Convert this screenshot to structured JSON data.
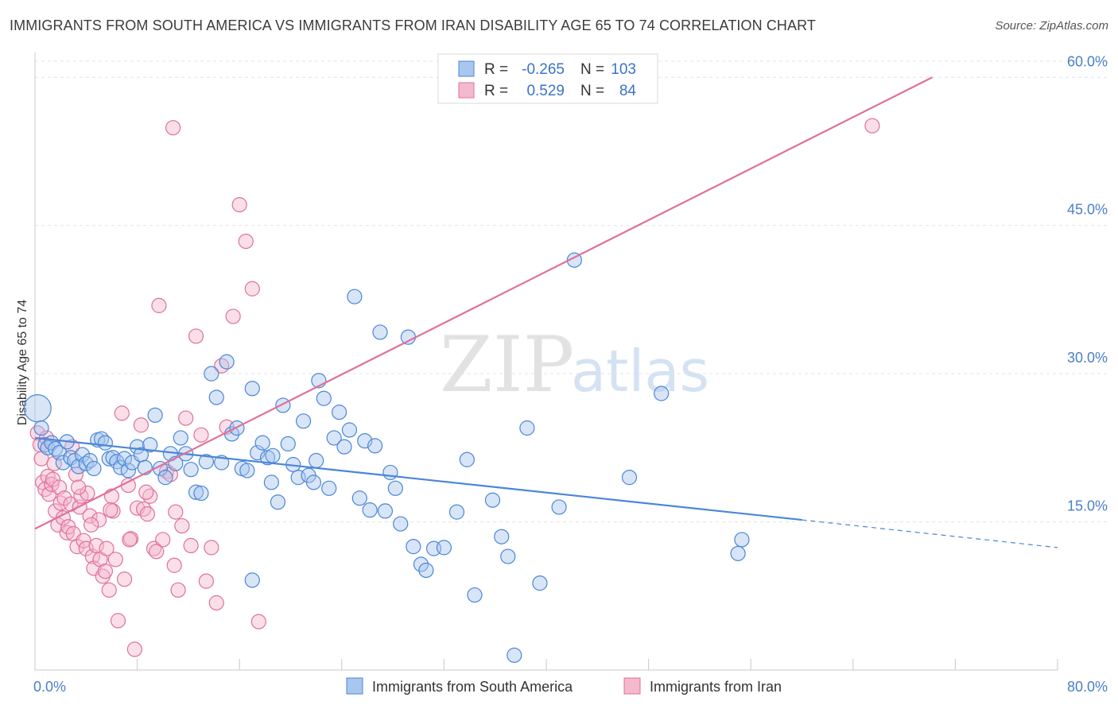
{
  "title": "IMMIGRANTS FROM SOUTH AMERICA VS IMMIGRANTS FROM IRAN DISABILITY AGE 65 TO 74 CORRELATION CHART",
  "source": "Source: ZipAtlas.com",
  "watermark": {
    "zip": "ZIP",
    "atlas": "atlas"
  },
  "colors": {
    "blue": "#4a86d8",
    "blue_fill": "#a9c6ee",
    "pink": "#e0709a",
    "pink_fill": "#f3b9cc",
    "tick": "#4a7fc9"
  },
  "legend": {
    "rows": [
      {
        "r_label": "R =",
        "r_value": "-0.265",
        "n_label": "N =",
        "n_value": "103"
      },
      {
        "r_label": "R =",
        "r_value": "0.529",
        "n_label": "N =",
        "n_value": "84"
      }
    ]
  },
  "chart_data": {
    "type": "scatter",
    "xlabel": "",
    "ylabel": "Disability Age 65 to 74",
    "xlim": [
      0,
      80
    ],
    "ylim": [
      0,
      63
    ],
    "x_tick_labels": [
      "0.0%",
      "80.0%"
    ],
    "y_ticks": [
      {
        "value": 15,
        "label": "15.0%"
      },
      {
        "value": 30,
        "label": "30.0%"
      },
      {
        "value": 45,
        "label": "45.0%"
      },
      {
        "value": 60,
        "label": "60.0%"
      }
    ],
    "grid": true,
    "series": [
      {
        "name": "Immigrants from South America",
        "color": "#4a86d8",
        "r": -0.265,
        "n": 103,
        "trend": {
          "x0": 0,
          "y0": 23.5,
          "x1": 60,
          "y1": 15.2,
          "dashed_to_x": 80,
          "dashed_to_y": 12.4
        },
        "points": [
          [
            0.2,
            26.5
          ],
          [
            0.5,
            24.5
          ],
          [
            0.8,
            22.8
          ],
          [
            1.0,
            22.5
          ],
          [
            1.3,
            23.0
          ],
          [
            1.6,
            22.4
          ],
          [
            1.9,
            22.0
          ],
          [
            2.2,
            21.0
          ],
          [
            2.5,
            23.1
          ],
          [
            2.8,
            21.5
          ],
          [
            3.1,
            21.2
          ],
          [
            3.4,
            20.6
          ],
          [
            3.7,
            21.8
          ],
          [
            4.0,
            20.9
          ],
          [
            4.3,
            21.2
          ],
          [
            4.6,
            20.4
          ],
          [
            4.9,
            23.3
          ],
          [
            5.2,
            23.4
          ],
          [
            5.5,
            23.0
          ],
          [
            5.8,
            21.4
          ],
          [
            6.1,
            21.5
          ],
          [
            6.4,
            21.1
          ],
          [
            6.7,
            20.5
          ],
          [
            7.0,
            21.4
          ],
          [
            7.3,
            20.2
          ],
          [
            7.6,
            21.0
          ],
          [
            8.0,
            22.6
          ],
          [
            8.3,
            21.8
          ],
          [
            8.6,
            20.5
          ],
          [
            9.0,
            22.8
          ],
          [
            9.4,
            25.8
          ],
          [
            9.8,
            20.4
          ],
          [
            10.2,
            19.5
          ],
          [
            10.6,
            21.9
          ],
          [
            11.0,
            20.9
          ],
          [
            11.4,
            23.5
          ],
          [
            11.8,
            21.9
          ],
          [
            12.2,
            20.3
          ],
          [
            12.6,
            18.0
          ],
          [
            13.0,
            17.9
          ],
          [
            13.4,
            21.1
          ],
          [
            13.8,
            30.0
          ],
          [
            14.2,
            27.6
          ],
          [
            14.6,
            21.0
          ],
          [
            15.0,
            31.2
          ],
          [
            15.4,
            23.9
          ],
          [
            15.8,
            24.5
          ],
          [
            16.2,
            20.4
          ],
          [
            16.6,
            20.2
          ],
          [
            17.0,
            28.5
          ],
          [
            17.4,
            22.0
          ],
          [
            17.8,
            23.0
          ],
          [
            18.2,
            21.5
          ],
          [
            18.6,
            21.7
          ],
          [
            19.0,
            17.0
          ],
          [
            19.4,
            26.8
          ],
          [
            19.8,
            22.9
          ],
          [
            20.2,
            20.8
          ],
          [
            20.6,
            19.5
          ],
          [
            21.0,
            25.2
          ],
          [
            21.4,
            19.7
          ],
          [
            21.8,
            19.0
          ],
          [
            22.2,
            29.3
          ],
          [
            22.6,
            27.5
          ],
          [
            23.0,
            18.4
          ],
          [
            23.4,
            23.5
          ],
          [
            23.8,
            26.1
          ],
          [
            24.2,
            22.6
          ],
          [
            24.6,
            24.3
          ],
          [
            25.0,
            37.8
          ],
          [
            25.4,
            17.4
          ],
          [
            25.8,
            23.2
          ],
          [
            26.2,
            16.2
          ],
          [
            26.6,
            22.7
          ],
          [
            27.0,
            34.2
          ],
          [
            27.4,
            16.1
          ],
          [
            27.8,
            20.0
          ],
          [
            28.2,
            18.4
          ],
          [
            28.6,
            14.8
          ],
          [
            29.2,
            33.7
          ],
          [
            29.6,
            12.5
          ],
          [
            30.2,
            10.7
          ],
          [
            30.6,
            10.1
          ],
          [
            31.2,
            12.3
          ],
          [
            32.0,
            12.4
          ],
          [
            33.0,
            16.0
          ],
          [
            33.8,
            21.3
          ],
          [
            34.4,
            7.6
          ],
          [
            35.8,
            17.2
          ],
          [
            36.5,
            13.5
          ],
          [
            37.0,
            11.5
          ],
          [
            38.5,
            24.5
          ],
          [
            39.5,
            8.8
          ],
          [
            41.0,
            16.5
          ],
          [
            42.2,
            41.5
          ],
          [
            46.5,
            19.5
          ],
          [
            49.0,
            28.0
          ],
          [
            55.3,
            13.2
          ],
          [
            55.0,
            11.8
          ],
          [
            17.0,
            9.1
          ],
          [
            22.0,
            21.2
          ],
          [
            37.5,
            1.5
          ],
          [
            18.5,
            19.0
          ]
        ]
      },
      {
        "name": "Immigrants from Iran",
        "color": "#e0709a",
        "r": 0.529,
        "n": 84,
        "trend": {
          "x0": 0,
          "y0": 14.3,
          "x1": 70.2,
          "y1": 60.0
        },
        "points": [
          [
            0.2,
            24.0
          ],
          [
            0.4,
            22.8
          ],
          [
            0.5,
            21.4
          ],
          [
            0.6,
            19.0
          ],
          [
            0.8,
            18.3
          ],
          [
            1.0,
            19.6
          ],
          [
            1.1,
            17.8
          ],
          [
            1.3,
            18.8
          ],
          [
            1.4,
            19.3
          ],
          [
            1.6,
            16.1
          ],
          [
            1.8,
            14.7
          ],
          [
            1.9,
            18.5
          ],
          [
            2.0,
            16.9
          ],
          [
            2.2,
            15.4
          ],
          [
            2.3,
            17.4
          ],
          [
            2.5,
            13.9
          ],
          [
            2.6,
            14.5
          ],
          [
            2.8,
            16.8
          ],
          [
            3.0,
            13.8
          ],
          [
            3.2,
            19.8
          ],
          [
            3.3,
            12.5
          ],
          [
            3.5,
            16.5
          ],
          [
            3.6,
            17.6
          ],
          [
            3.8,
            13.1
          ],
          [
            4.0,
            12.3
          ],
          [
            4.1,
            17.9
          ],
          [
            4.3,
            15.6
          ],
          [
            4.5,
            11.5
          ],
          [
            4.6,
            10.3
          ],
          [
            4.8,
            12.6
          ],
          [
            5.0,
            15.2
          ],
          [
            5.1,
            11.2
          ],
          [
            5.3,
            9.5
          ],
          [
            5.5,
            10.0
          ],
          [
            5.6,
            12.3
          ],
          [
            5.8,
            8.1
          ],
          [
            6.0,
            17.6
          ],
          [
            6.1,
            16.1
          ],
          [
            6.3,
            11.2
          ],
          [
            6.5,
            5.0
          ],
          [
            6.8,
            26.0
          ],
          [
            7.0,
            9.2
          ],
          [
            7.3,
            18.7
          ],
          [
            7.5,
            13.3
          ],
          [
            7.8,
            2.1
          ],
          [
            8.0,
            16.4
          ],
          [
            8.3,
            24.8
          ],
          [
            8.5,
            16.3
          ],
          [
            8.8,
            15.8
          ],
          [
            9.0,
            17.6
          ],
          [
            9.3,
            12.3
          ],
          [
            9.7,
            36.9
          ],
          [
            10.0,
            13.2
          ],
          [
            10.3,
            20.1
          ],
          [
            10.6,
            19.8
          ],
          [
            10.9,
            10.6
          ],
          [
            11.2,
            8.1
          ],
          [
            11.5,
            14.6
          ],
          [
            11.8,
            25.5
          ],
          [
            12.2,
            12.6
          ],
          [
            12.6,
            33.8
          ],
          [
            13.0,
            23.8
          ],
          [
            13.4,
            9.0
          ],
          [
            13.8,
            12.4
          ],
          [
            14.2,
            6.8
          ],
          [
            14.6,
            30.8
          ],
          [
            15.0,
            24.6
          ],
          [
            15.5,
            35.8
          ],
          [
            16.0,
            47.1
          ],
          [
            16.5,
            43.4
          ],
          [
            17.0,
            38.6
          ],
          [
            17.5,
            4.9
          ],
          [
            10.8,
            54.9
          ],
          [
            65.5,
            55.1
          ],
          [
            0.9,
            23.5
          ],
          [
            1.5,
            20.9
          ],
          [
            2.9,
            22.6
          ],
          [
            3.4,
            18.5
          ],
          [
            4.4,
            14.7
          ],
          [
            5.9,
            16.2
          ],
          [
            7.4,
            13.2
          ],
          [
            8.7,
            18.0
          ],
          [
            9.5,
            12.0
          ],
          [
            11.0,
            16.0
          ]
        ]
      }
    ]
  }
}
